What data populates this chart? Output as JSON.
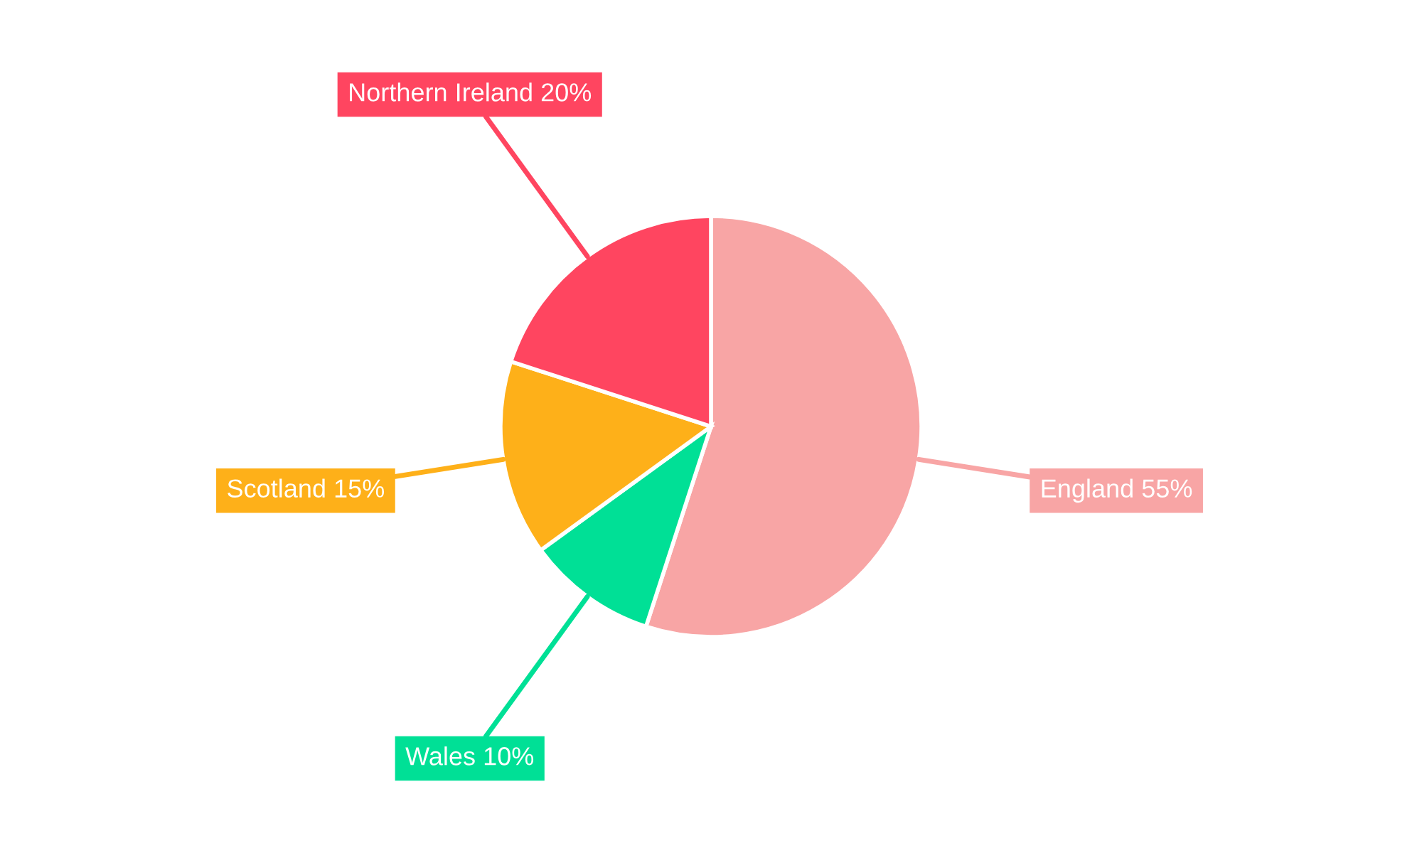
{
  "chart_data": {
    "type": "pie",
    "categories": [
      "England",
      "Wales",
      "Scotland",
      "Northern Ireland"
    ],
    "values": [
      55,
      10,
      15,
      20
    ],
    "value_labels": [
      "55%",
      "10%",
      "15%",
      "20%"
    ],
    "colors": [
      "#f8a5a5",
      "#00e096",
      "#feb019",
      "#ff4560"
    ],
    "legend": false
  }
}
